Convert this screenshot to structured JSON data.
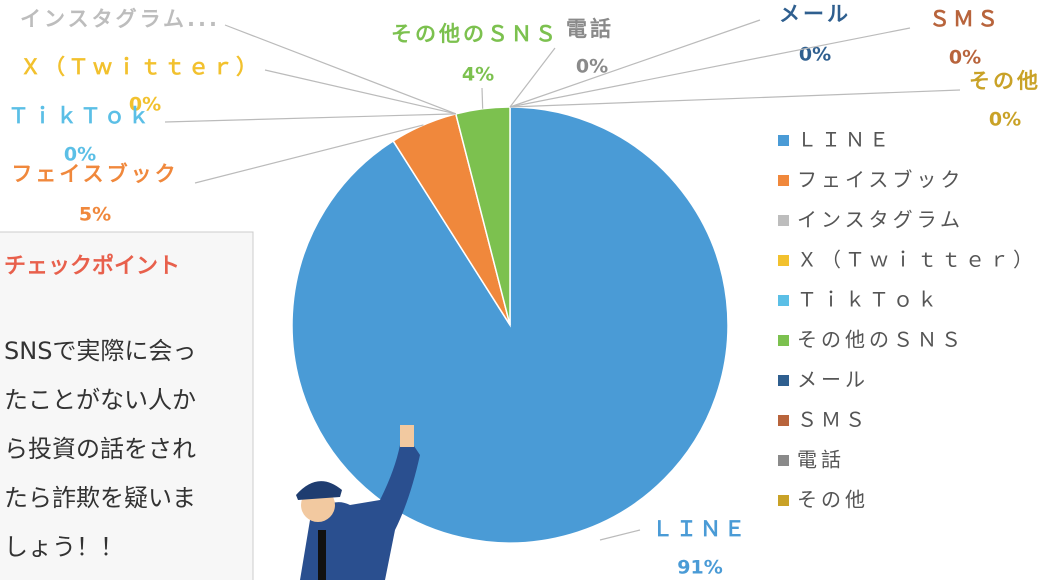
{
  "chart_data": {
    "type": "pie",
    "categories": [
      "ＬＩＮＥ",
      "フェイスブック",
      "インスタグラム",
      "Ｘ（Ｔｗｉｔｔｅｒ）",
      "ＴｉｋＴｏｋ",
      "その他のＳＮＳ",
      "メール",
      "ＳＭＳ",
      "電話",
      "その他"
    ],
    "point_labels": [
      "ＬＩＮＥ",
      "フェイスブック",
      "インスタグラム...",
      "Ｘ（Ｔｗｉｔｔｅｒ）",
      "ＴｉｋＴｏｋ",
      "その他のＳＮＳ",
      "メール",
      "ＳＭＳ",
      "電話",
      "その他"
    ],
    "values": [
      91,
      5,
      0,
      0,
      0,
      4,
      0,
      0,
      0,
      0
    ],
    "value_labels": [
      "91%",
      "5%",
      null,
      "0%",
      "0%",
      "4%",
      "0%",
      "0%",
      "0%",
      "0%"
    ],
    "colors": [
      "#4a9bd6",
      "#f0883c",
      "#bdbdbd",
      "#f2c12e",
      "#5bbfe6",
      "#7cc14f",
      "#2f5f8f",
      "#b8643c",
      "#8a8a8a",
      "#c9a227"
    ],
    "legend": "right"
  },
  "annotation": {
    "title": "チェックポイント",
    "lines": [
      "SNSで実際に会っ",
      "たことがない人か",
      "ら投資の話をされ",
      "たら詐欺を疑いま",
      "しょう！！"
    ]
  }
}
